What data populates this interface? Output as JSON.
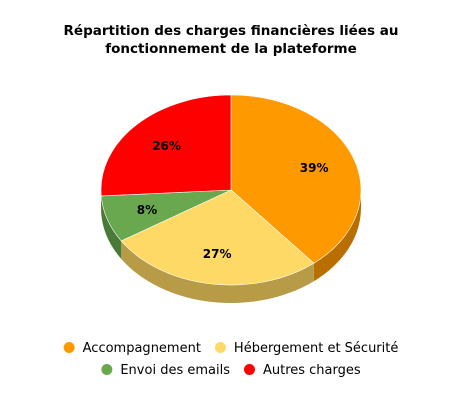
{
  "chart_data": {
    "type": "pie",
    "title_lines": [
      "Répartition des charges financières liées au",
      "fonctionnement de la plateforme"
    ],
    "three_d": true,
    "legend_position": "bottom",
    "series": [
      {
        "name": "Accompagnement",
        "value": 39,
        "label": "39%",
        "color": "#ff9900",
        "side_color": "#b96f00"
      },
      {
        "name": "Hébergement et Sécurité",
        "value": 27,
        "label": "27%",
        "color": "#ffd966",
        "side_color": "#b89b47"
      },
      {
        "name": "Envoi des emails",
        "value": 8,
        "label": "8%",
        "color": "#6aa84f",
        "side_color": "#4a7a37"
      },
      {
        "name": "Autres charges",
        "value": 26,
        "label": "26%",
        "color": "#ff0000",
        "side_color": "#b30000"
      }
    ]
  }
}
